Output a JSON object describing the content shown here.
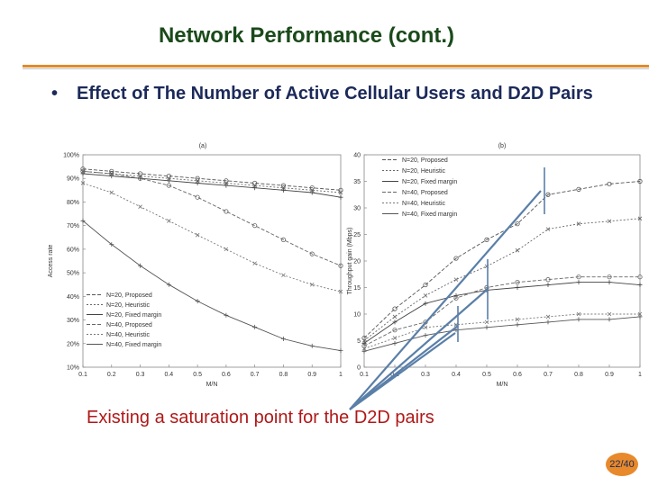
{
  "slide": {
    "title": "Network Performance (cont.)",
    "bullet": "Effect of The Number of Active Cellular Users and D2D Pairs",
    "annotation": "Existing a saturation point for the D2D pairs",
    "page": "22/40",
    "colors": {
      "title": "#1a4a1a",
      "bullet": "#1c2a5a",
      "accent": "#e08a2c",
      "annotation": "#b01818",
      "arrow": "#5a7fa8"
    }
  },
  "chart_data": [
    {
      "type": "line",
      "panel_label": "(a)",
      "xlabel": "M/N",
      "ylabel": "Access rate",
      "xlim": [
        0.1,
        1
      ],
      "ylim": [
        10,
        100
      ],
      "x_ticks": [
        "0.1",
        "0.2",
        "0.3",
        "0.4",
        "0.5",
        "0.6",
        "0.7",
        "0.8",
        "0.9",
        "1"
      ],
      "y_ticks": [
        "10%",
        "20%",
        "30%",
        "40%",
        "50%",
        "60%",
        "70%",
        "80%",
        "90%",
        "100%"
      ],
      "legend_position": "bottom-left",
      "x": [
        0.1,
        0.2,
        0.3,
        0.4,
        0.5,
        0.6,
        0.7,
        0.8,
        0.9,
        1.0
      ],
      "series": [
        {
          "name": "N=20, Proposed",
          "marker": "o",
          "dash": "4,2",
          "values": [
            94,
            93,
            92,
            91,
            90,
            89,
            88,
            87,
            86,
            85
          ]
        },
        {
          "name": "N=20, Heuristic",
          "marker": "x",
          "dash": "2,2",
          "values": [
            93,
            92,
            91,
            90,
            89,
            88,
            87,
            86,
            85,
            84
          ]
        },
        {
          "name": "N=20, Fixed margin",
          "marker": "+",
          "dash": "",
          "values": [
            92,
            91,
            90,
            89,
            88,
            87,
            86,
            85,
            84,
            82
          ]
        },
        {
          "name": "N=40, Proposed",
          "marker": "o",
          "dash": "4,2",
          "values": [
            93,
            92,
            90,
            87,
            82,
            76,
            70,
            64,
            58,
            53
          ]
        },
        {
          "name": "N=40, Heuristic",
          "marker": "x",
          "dash": "2,2",
          "values": [
            88,
            84,
            78,
            72,
            66,
            60,
            54,
            49,
            45,
            42
          ]
        },
        {
          "name": "N=40, Fixed margin",
          "marker": "+",
          "dash": "",
          "values": [
            72,
            62,
            53,
            45,
            38,
            32,
            27,
            22,
            19,
            17
          ]
        }
      ]
    },
    {
      "type": "line",
      "panel_label": "(b)",
      "xlabel": "M/N",
      "ylabel": "Throughput gain (Mbps)",
      "xlim": [
        0.1,
        1
      ],
      "ylim": [
        0,
        40
      ],
      "x_ticks": [
        "0.1",
        "0.2",
        "0.3",
        "0.4",
        "0.5",
        "0.6",
        "0.7",
        "0.8",
        "0.9",
        "1"
      ],
      "y_ticks": [
        "0",
        "5",
        "10",
        "15",
        "20",
        "25",
        "30",
        "35",
        "40"
      ],
      "legend_position": "top-left",
      "x": [
        0.1,
        0.2,
        0.3,
        0.4,
        0.5,
        0.6,
        0.7,
        0.8,
        0.9,
        1.0
      ],
      "series": [
        {
          "name": "N=20, Proposed",
          "marker": "o",
          "dash": "4,2",
          "values": [
            5.5,
            11,
            15.5,
            20.5,
            24,
            27,
            32.5,
            33.5,
            34.5,
            35
          ]
        },
        {
          "name": "N=20, Heuristic",
          "marker": "x",
          "dash": "2,2",
          "values": [
            5,
            9.5,
            13.5,
            16.5,
            19,
            22,
            26,
            27,
            27.5,
            28
          ]
        },
        {
          "name": "N=20, Fixed margin",
          "marker": "+",
          "dash": "",
          "values": [
            4.5,
            8.5,
            12,
            13.5,
            14.5,
            15,
            15.5,
            16,
            16,
            15.5
          ]
        },
        {
          "name": "N=40, Proposed",
          "marker": "o",
          "dash": "4,2",
          "values": [
            4,
            7,
            8.5,
            13,
            15,
            16,
            16.5,
            17,
            17,
            17
          ]
        },
        {
          "name": "N=40, Heuristic",
          "marker": "x",
          "dash": "2,2",
          "values": [
            3.5,
            5.5,
            7.5,
            8,
            8.5,
            9,
            9.5,
            10,
            10,
            10
          ]
        },
        {
          "name": "N=40, Fixed margin",
          "marker": "+",
          "dash": "",
          "values": [
            3,
            4.5,
            6,
            7,
            7.5,
            8,
            8.5,
            9,
            9,
            9.5
          ]
        }
      ]
    }
  ]
}
